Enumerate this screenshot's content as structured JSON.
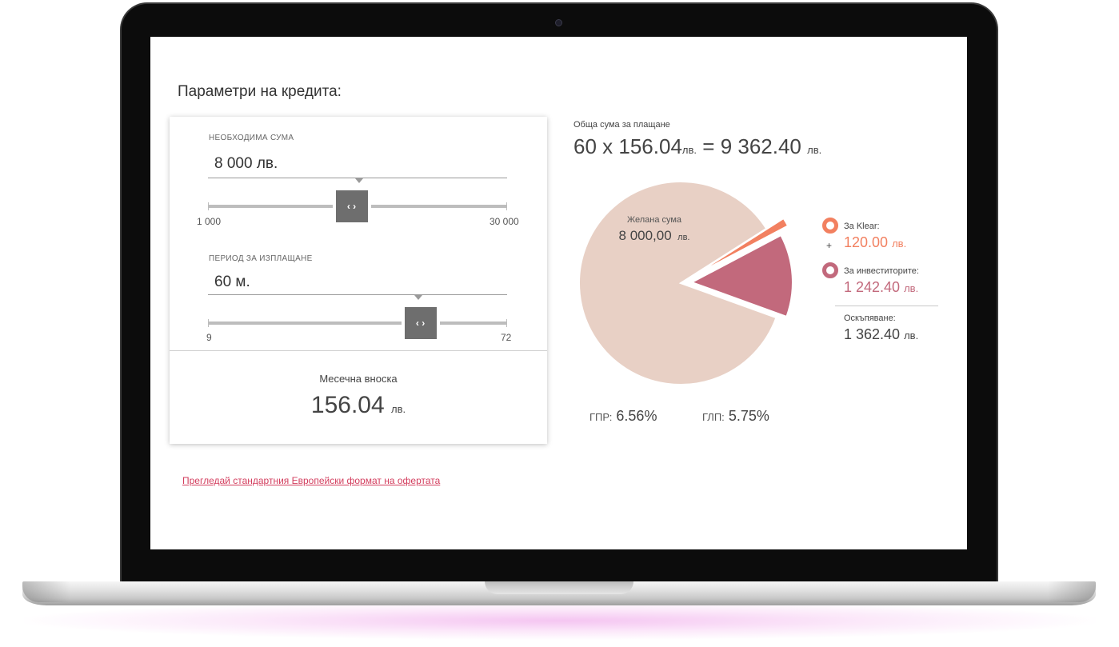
{
  "colors": {
    "accent_klear": "#f28060",
    "accent_investors": "#c2697c",
    "pie_main": "#e8d0c5",
    "link": "#d33e5e",
    "handle": "#6e6e6e"
  },
  "section_title": "Параметри на кредита:",
  "amount": {
    "label": "НЕОБХОДИМА СУМА",
    "value": "8 000 лв.",
    "min_label": "1 000",
    "max_label": "30 000",
    "handle_icon": "chevron-left-right-icon",
    "handle_glyph": "‹ ›",
    "slider_level": 0.48
  },
  "period": {
    "label": "ПЕРИОД ЗА ИЗПЛАЩАНЕ",
    "value": "60 м.",
    "min_label": "9",
    "max_label": "72",
    "handle_icon": "chevron-left-right-icon",
    "handle_glyph": "‹ ›",
    "slider_level": 0.71
  },
  "monthly": {
    "label": "Месечна вноска",
    "value": "156.04",
    "unit": "лв."
  },
  "offer_link": "Прегледай стандартния Европейски формат на офертата",
  "total": {
    "label": "Обща сума за плащане",
    "months": "60",
    "times": "x",
    "payment": "156.04",
    "equals": "=",
    "sum": "9 362.40",
    "unit": "лв."
  },
  "chart_data": {
    "type": "pie",
    "slices": [
      {
        "label": "Желана сума",
        "value": 8000.0
      },
      {
        "label": "За Klear",
        "value": 120.0
      },
      {
        "label": "За инвеститорите",
        "value": 1242.4
      }
    ],
    "main_label": "Желана сума",
    "main_value": "8 000,00",
    "main_unit": "лв."
  },
  "legend": {
    "klear": {
      "label": "За Klear:",
      "value": "120.00",
      "unit": "лв."
    },
    "plus": "+",
    "investors": {
      "label": "За инвеститорите:",
      "value": "1 242.40",
      "unit": "лв."
    },
    "cost": {
      "label": "Оскъпяване:",
      "value": "1 362.40",
      "unit": "лв."
    }
  },
  "rates": {
    "gpr_label": "ГПР:",
    "gpr_value": "6.56%",
    "glp_label": "ГЛП:",
    "glp_value": "5.75%"
  }
}
